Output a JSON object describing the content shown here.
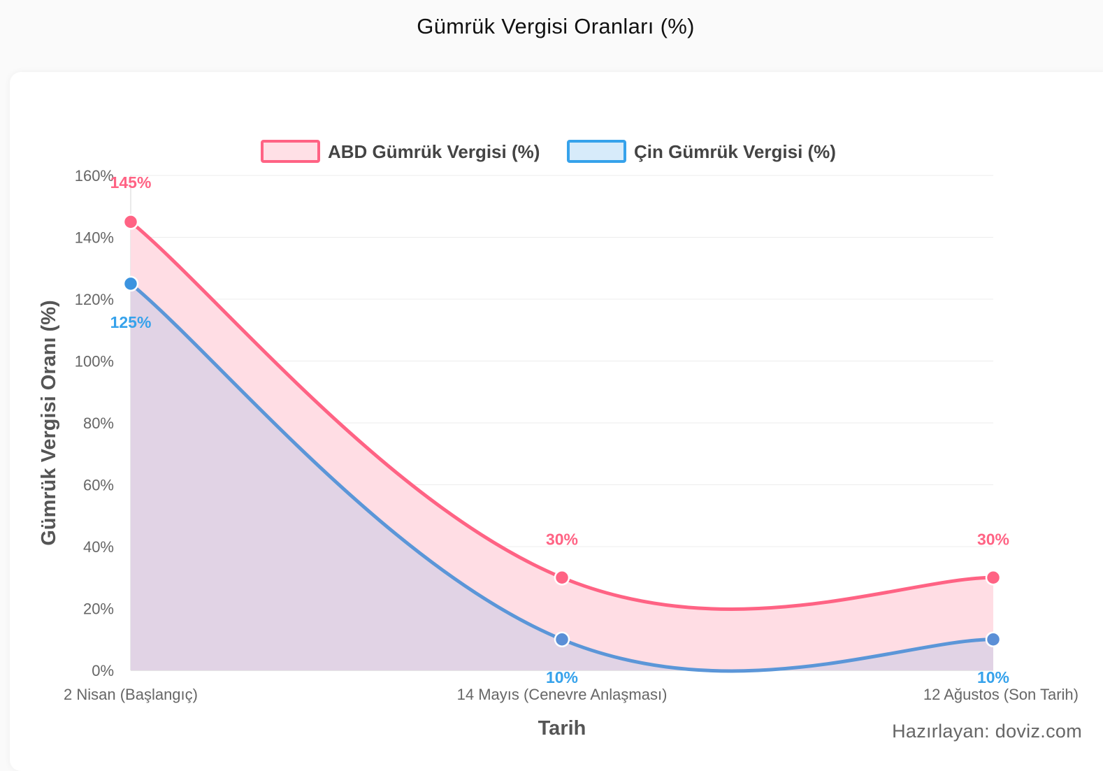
{
  "page": {
    "title": "Gümrük Vergisi Oranları (%)",
    "credit": "Hazırlayan: doviz.com"
  },
  "chart_data": {
    "type": "area",
    "title": "",
    "xlabel": "Tarih",
    "ylabel": "Gümrük Vergisi Oranı (%)",
    "categories": [
      "2 Nisan (Başlangıç)",
      "14 Mayıs (Cenevre Anlaşması)",
      "12 Ağustos (Son Tarih)"
    ],
    "ylim": [
      0,
      160
    ],
    "yticks": [
      "0%",
      "20%",
      "40%",
      "60%",
      "80%",
      "100%",
      "120%",
      "140%",
      "160%"
    ],
    "grid": true,
    "legend_position": "top",
    "series": [
      {
        "name": "ABD Gümrük Vergisi (%)",
        "values": [
          145,
          30,
          30
        ],
        "labels": [
          "145%",
          "30%",
          "30%"
        ],
        "color": "#ff6384",
        "fill": "#ffdde4"
      },
      {
        "name": "Çin Gümrük Vergisi (%)",
        "values": [
          125,
          10,
          10
        ],
        "labels": [
          "125%",
          "10%",
          "10%"
        ],
        "color": "#36a2eb",
        "line_color": "#5b96d8",
        "fill": "#ded1e4"
      }
    ]
  }
}
